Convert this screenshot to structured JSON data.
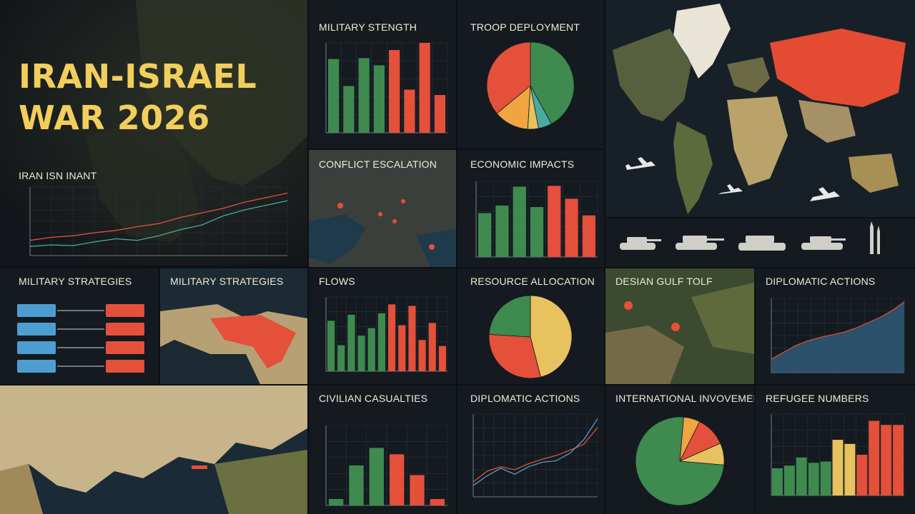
{
  "hero": {
    "line1": "IRAN-ISRAEL",
    "line2": "WAR 2026"
  },
  "panels": {
    "iran_isn": "IRAN ISN INANT",
    "military_stength": "MILITARY STENGTH",
    "troop_deployment": "TROOP DEPLOYMENT",
    "conflict_escalation": "CONFLICT ESCALATION",
    "economic_impacts": "ECONOMIC IMPACTS",
    "military_strategies_a": "MILITARY STRATEGIES",
    "military_strategies_b": "MILITARY STRATEGIES",
    "flows": "FLOWS",
    "resource_allocation": "RESOURCE ALLOCATION",
    "desian_gulf": "DESIAN GULF TOLF",
    "diplomatic_actions_a": "DIPLOMATIC ACTIONS",
    "civilian_casualties": "CIVILIAN CASUALTIES",
    "diplomatic_actions_b": "DIPLOMATIC ACTIONS",
    "international_invovement": "INTERNATIONAL INVOVEMENT",
    "refugee_numbers": "REFUGEE NUMBERS"
  },
  "colors": {
    "green": "#3f8a4f",
    "red": "#e4503a",
    "orange": "#f0a542",
    "yellow": "#e8c25e",
    "teal": "#4aa9a0",
    "blue": "#4c9ed0",
    "title": "#f2cf5c"
  },
  "icons": [
    "aircraft-icon",
    "tank-icon",
    "missile-icon"
  ],
  "chart_data": [
    {
      "id": "iran_isn",
      "type": "line",
      "series": [
        {
          "color": "#e4503a",
          "values": [
            20,
            24,
            26,
            30,
            33,
            38,
            42,
            50,
            56,
            62,
            70,
            76,
            82
          ]
        },
        {
          "color": "#4aa9a0",
          "values": [
            12,
            14,
            13,
            18,
            22,
            20,
            26,
            34,
            40,
            52,
            60,
            66,
            72
          ]
        }
      ]
    },
    {
      "id": "military_stength",
      "type": "bar",
      "values": [
        82,
        52,
        83,
        75,
        92,
        48,
        100,
        42
      ],
      "colors": [
        "green",
        "green",
        "green",
        "green",
        "red",
        "red",
        "red",
        "red"
      ]
    },
    {
      "id": "troop_deployment",
      "type": "pie",
      "slices": [
        {
          "value": 42,
          "color": "green"
        },
        {
          "value": 5,
          "color": "teal"
        },
        {
          "value": 4,
          "color": "yellow"
        },
        {
          "value": 13,
          "color": "orange"
        },
        {
          "value": 36,
          "color": "red"
        }
      ]
    },
    {
      "id": "economic_impacts",
      "type": "bar",
      "values": [
        58,
        68,
        93,
        66,
        94,
        77,
        55
      ],
      "colors": [
        "green",
        "green",
        "green",
        "green",
        "red",
        "red",
        "red"
      ]
    },
    {
      "id": "flows",
      "type": "bar",
      "values": [
        68,
        35,
        76,
        48,
        58,
        78,
        90,
        62,
        88,
        42,
        65,
        34
      ],
      "colors": [
        "green",
        "green",
        "green",
        "green",
        "green",
        "green",
        "red",
        "red",
        "red",
        "red",
        "red",
        "red"
      ]
    },
    {
      "id": "resource_allocation",
      "type": "pie",
      "slices": [
        {
          "value": 46,
          "color": "yellow"
        },
        {
          "value": 30,
          "color": "red"
        },
        {
          "value": 24,
          "color": "green"
        }
      ],
      "start": -90
    },
    {
      "id": "diplomatic_actions_a",
      "type": "area",
      "values": [
        20,
        30,
        40,
        47,
        52,
        56,
        60,
        66,
        74,
        82,
        92,
        105
      ]
    },
    {
      "id": "civilian_casualties",
      "type": "bar",
      "values": [
        8,
        50,
        72,
        64,
        38,
        8
      ],
      "colors": [
        "green",
        "green",
        "green",
        "red",
        "red",
        "red"
      ]
    },
    {
      "id": "diplomatic_actions_b",
      "type": "line",
      "series": [
        {
          "color": "#e4503a",
          "values": [
            20,
            34,
            40,
            36,
            44,
            50,
            55,
            62,
            70,
            92
          ]
        },
        {
          "color": "#4c9ed0",
          "values": [
            15,
            28,
            38,
            30,
            40,
            46,
            48,
            58,
            76,
            104
          ]
        }
      ]
    },
    {
      "id": "international_invovement",
      "type": "pie",
      "slices": [
        {
          "value": 6,
          "color": "orange"
        },
        {
          "value": 11,
          "color": "red"
        },
        {
          "value": 8,
          "color": "yellow"
        },
        {
          "value": 75,
          "color": "green"
        }
      ],
      "start": -85
    },
    {
      "id": "refugee_numbers",
      "type": "bar",
      "values": [
        40,
        44,
        56,
        48,
        50,
        82,
        76,
        60,
        110,
        104,
        104
      ],
      "colors": [
        "green",
        "green",
        "green",
        "green",
        "green",
        "yellow",
        "yellow",
        "red",
        "red",
        "red",
        "red"
      ]
    }
  ]
}
